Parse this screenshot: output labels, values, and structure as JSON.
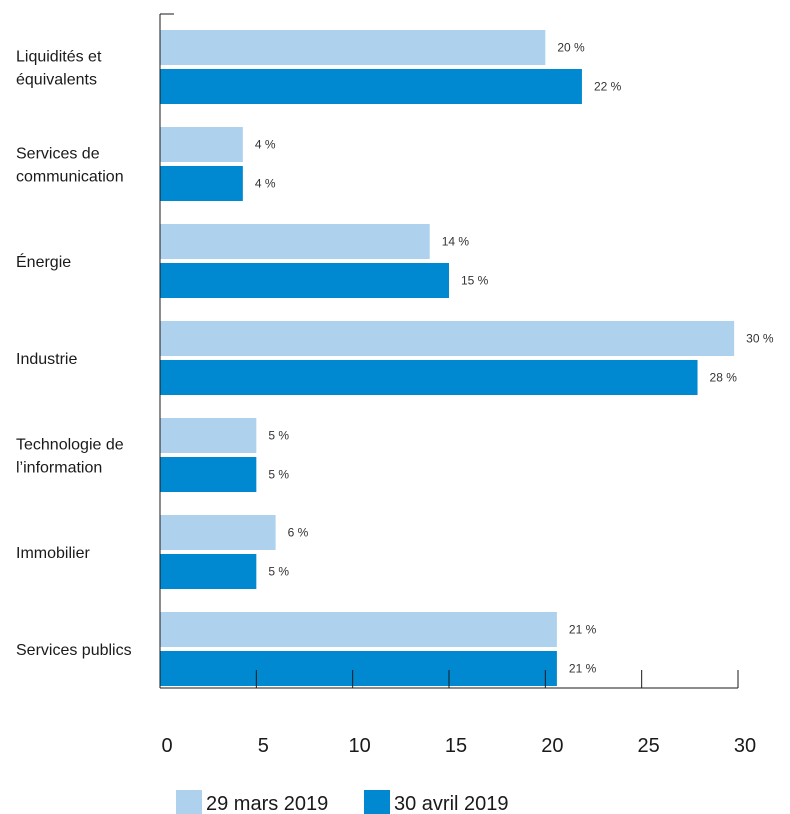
{
  "chart_data": {
    "type": "bar",
    "orientation": "horizontal",
    "categories": [
      [
        "Liquidités et",
        "équivalents"
      ],
      [
        "Services de",
        "communication"
      ],
      [
        "Énergie"
      ],
      [
        "Industrie"
      ],
      [
        "Technologie de",
        "l’information"
      ],
      [
        "Immobilier"
      ],
      [
        "Services publics"
      ]
    ],
    "series": [
      {
        "name": "29 mars 2019",
        "color": "#aed2ee",
        "values": [
          20,
          4.3,
          14,
          29.8,
          5,
          6,
          20.6
        ],
        "labels": [
          "20 %",
          "4 %",
          "14 %",
          "30 %",
          "5 %",
          "6 %",
          "21 %"
        ]
      },
      {
        "name": "30 avril 2019",
        "color": "#0088d1",
        "values": [
          21.9,
          4.3,
          15,
          27.9,
          5,
          5,
          20.6
        ],
        "labels": [
          "22 %",
          "4 %",
          "15 %",
          "28 %",
          "5 %",
          "5 %",
          "21 %"
        ]
      }
    ],
    "xlim": [
      0,
      30
    ],
    "xticks": [
      "0",
      "5",
      "10",
      "15",
      "20",
      "25",
      "30"
    ],
    "xtick_values": [
      0,
      5,
      10,
      15,
      20,
      25,
      30
    ],
    "grid": false,
    "legend_position": "bottom"
  }
}
